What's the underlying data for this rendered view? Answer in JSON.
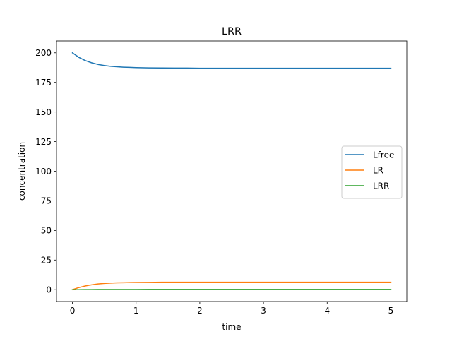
{
  "chart_data": {
    "type": "line",
    "title": "LRR",
    "xlabel": "time",
    "ylabel": "concentration",
    "xlim": [
      -0.25,
      5.25
    ],
    "ylim": [
      -10,
      210
    ],
    "x_ticks": [
      0,
      1,
      2,
      3,
      4,
      5
    ],
    "x_tick_labels": [
      "0",
      "1",
      "2",
      "3",
      "4",
      "5"
    ],
    "y_ticks": [
      0,
      25,
      50,
      75,
      100,
      125,
      150,
      175,
      200
    ],
    "y_tick_labels": [
      "0",
      "25",
      "50",
      "75",
      "100",
      "125",
      "150",
      "175",
      "200"
    ],
    "grid": false,
    "legend_position": "center-right",
    "x": [
      0,
      0.1,
      0.2,
      0.3,
      0.4,
      0.5,
      0.6,
      0.7,
      0.8,
      0.9,
      1.0,
      1.2,
      1.4,
      1.6,
      1.8,
      2.0,
      2.5,
      3.0,
      3.5,
      4.0,
      4.5,
      5.0
    ],
    "series": [
      {
        "name": "Lfree",
        "color": "#1f77b4",
        "values": [
          200,
          196.2,
          193.5,
          191.6,
          190.2,
          189.3,
          188.6,
          188.2,
          187.9,
          187.7,
          187.5,
          187.3,
          187.2,
          187.1,
          187.1,
          187.0,
          187.0,
          187.0,
          187.0,
          187.0,
          187.0,
          187.0
        ]
      },
      {
        "name": "LR",
        "color": "#ff7f0e",
        "values": [
          0,
          1.8,
          3.1,
          4.1,
          4.8,
          5.3,
          5.6,
          5.8,
          5.9,
          6.0,
          6.1,
          6.2,
          6.3,
          6.3,
          6.3,
          6.3,
          6.3,
          6.3,
          6.3,
          6.3,
          6.3,
          6.3
        ]
      },
      {
        "name": "LRR",
        "color": "#2ca02c",
        "values": [
          0,
          0.02,
          0.05,
          0.08,
          0.1,
          0.12,
          0.14,
          0.15,
          0.16,
          0.17,
          0.17,
          0.18,
          0.18,
          0.18,
          0.18,
          0.18,
          0.18,
          0.18,
          0.18,
          0.18,
          0.18,
          0.18
        ]
      }
    ]
  }
}
